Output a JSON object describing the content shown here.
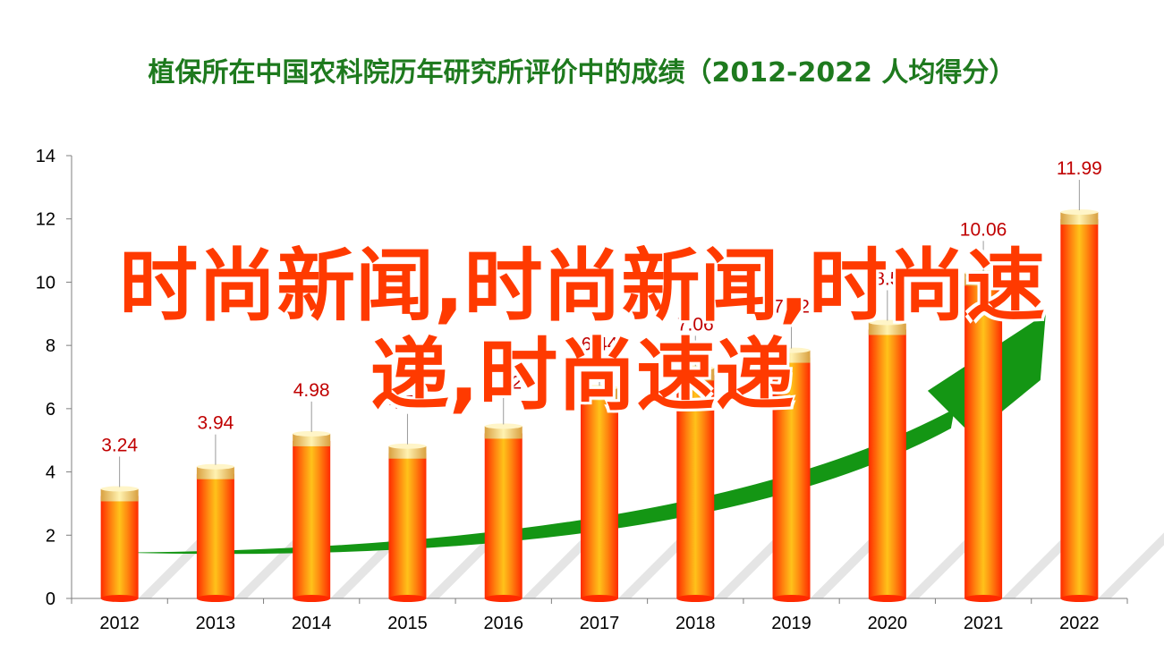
{
  "chart_data": {
    "type": "bar",
    "title": "植保所在中国农科院历年研究所评价中的成绩（2012-2022  人均得分）",
    "categories": [
      "2012",
      "2013",
      "2014",
      "2015",
      "2016",
      "2017",
      "2018",
      "2019",
      "2020",
      "2021",
      "2022"
    ],
    "values": [
      3.24,
      3.94,
      4.98,
      4.59,
      5.22,
      6.44,
      7.06,
      7.62,
      8.5,
      10.06,
      11.99
    ],
    "value_labels": [
      "3.24",
      "3.94",
      "4.98",
      "4.59",
      "5.22",
      "6.44",
      "7.06",
      "7.62",
      "8.5",
      "10.06",
      "11.99"
    ],
    "ylim": [
      0,
      14
    ],
    "yticks": [
      0,
      2,
      4,
      6,
      8,
      10,
      12,
      14
    ],
    "xlabel": "",
    "ylabel": "",
    "grid": false,
    "legend": "none",
    "colors": {
      "bar_edge": "#ff2a00",
      "bar_center": "#ffc21a",
      "cap": "#f2c46a",
      "arrow": "#149614",
      "label": "#c00000"
    }
  },
  "watermark": {
    "line1": "时尚新闻,时尚新闻,时尚速",
    "line2": "递,时尚速递"
  }
}
